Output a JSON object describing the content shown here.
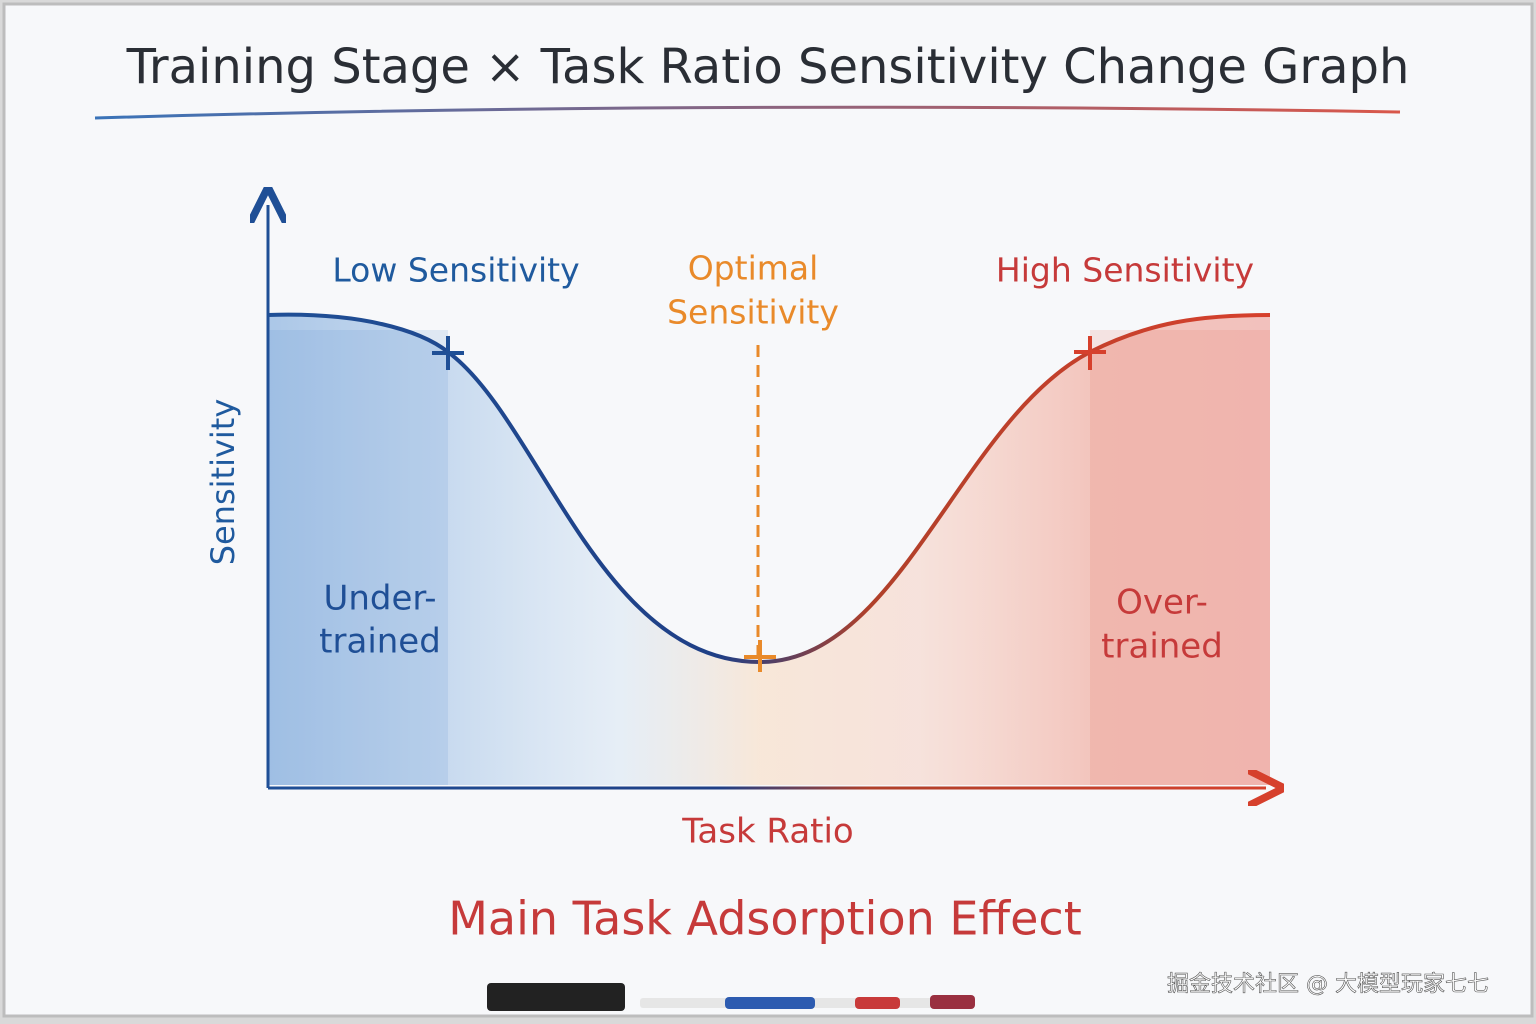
{
  "title": "Training Stage × Task Ratio Sensitivity Change Graph",
  "axes": {
    "y_label": "Sensitivity",
    "x_label": "Task Ratio"
  },
  "regions": {
    "low": "Low Sensitivity",
    "optimal": [
      "Optimal",
      "Sensitivity"
    ],
    "high": "High Sensitivity",
    "under": [
      "Under-",
      "trained"
    ],
    "over": [
      "Over-",
      "trained"
    ]
  },
  "caption": "Main Task Adsorption Effect",
  "watermark": "掘金技术社区 @ 大模型玩家七七"
}
